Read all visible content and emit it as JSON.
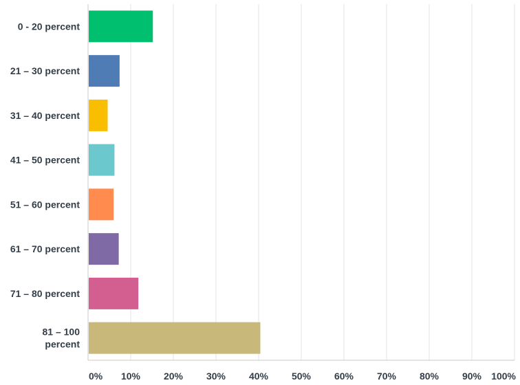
{
  "chart_data": {
    "type": "bar",
    "orientation": "horizontal",
    "categories": [
      [
        "0 - 20 percent"
      ],
      [
        "21 – 30 percent"
      ],
      [
        "31 – 40 percent"
      ],
      [
        "41 – 50 percent"
      ],
      [
        "51 – 60 percent"
      ],
      [
        "61 – 70 percent"
      ],
      [
        "71 – 80 percent"
      ],
      [
        "81 – 100",
        "percent"
      ]
    ],
    "values": [
      15.2,
      7.4,
      4.6,
      6.2,
      6.0,
      7.2,
      11.8,
      40.4
    ],
    "colors": [
      "#00bf6f",
      "#507cb6",
      "#f9be00",
      "#6bc8cd",
      "#ff8b4f",
      "#7f6aa5",
      "#d25f90",
      "#c8b97a"
    ],
    "xlim": [
      0,
      100
    ],
    "xticks": [
      "0%",
      "10%",
      "20%",
      "30%",
      "40%",
      "50%",
      "60%",
      "70%",
      "80%",
      "90%",
      "100%"
    ],
    "grid": true,
    "title": "",
    "xlabel": "",
    "ylabel": ""
  }
}
